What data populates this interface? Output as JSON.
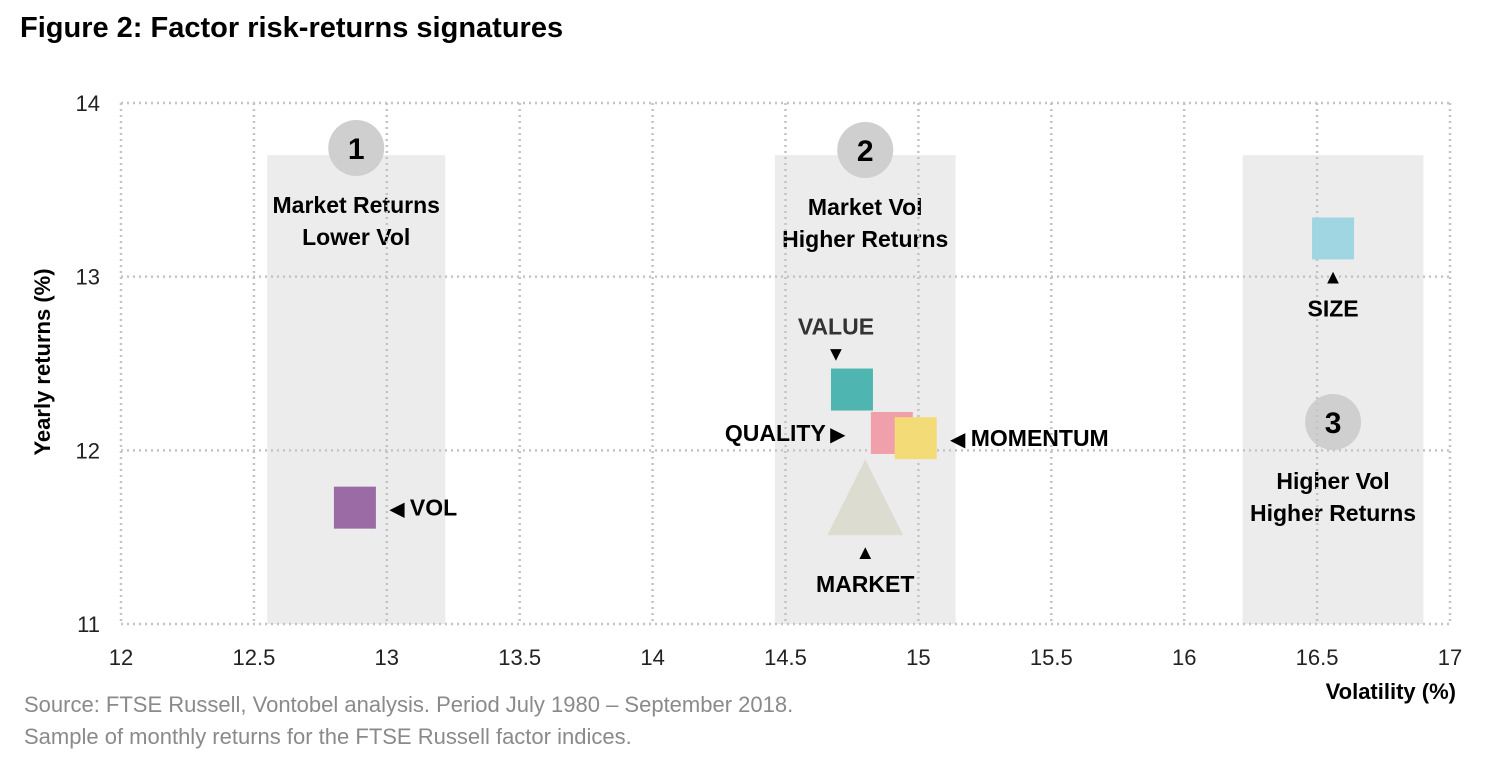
{
  "title": "Figure 2: Factor risk-returns signatures",
  "source_lines": [
    "Source: FTSE Russell, Vontobel analysis. Period July 1980 – September 2018.",
    "Sample of monthly returns for the FTSE Russell factor indices."
  ],
  "chart_data": {
    "type": "scatter",
    "xlabel": "Volatility (%)",
    "ylabel": "Yearly returns (%)",
    "xlim": [
      12,
      17
    ],
    "ylim": [
      11,
      14
    ],
    "x_ticks": [
      12,
      12.5,
      13,
      13.5,
      14,
      14.5,
      15,
      15.5,
      16,
      16.5,
      17
    ],
    "y_ticks": [
      11,
      12,
      13,
      14
    ],
    "x_tick_labels": [
      "12",
      "12.5",
      "13",
      "13.5",
      "14",
      "14.5",
      "15",
      "15.5",
      "16",
      "16.5",
      "17"
    ],
    "y_tick_labels": [
      "11",
      "12",
      "13",
      "14"
    ],
    "grid": true,
    "points": [
      {
        "label": "VOL",
        "x": 12.88,
        "y": 11.67,
        "color": "#9b6ba6",
        "marker": "square",
        "arrow": "◀",
        "label_side": "right"
      },
      {
        "label": "VALUE",
        "x": 14.75,
        "y": 12.35,
        "color": "#4fb5b0",
        "marker": "square",
        "arrow": "▼",
        "label_side": "top"
      },
      {
        "label": "QUALITY",
        "x": 14.9,
        "y": 12.1,
        "color": "#f0a0aa",
        "marker": "square",
        "arrow": "▶",
        "label_side": "left"
      },
      {
        "label": "MOMENTUM",
        "x": 14.99,
        "y": 12.07,
        "color": "#f3dc77",
        "marker": "square",
        "arrow": "◀",
        "label_side": "right"
      },
      {
        "label": "MARKET",
        "x": 14.8,
        "y": 11.73,
        "color": "#dcdcd0",
        "marker": "triangle",
        "arrow": "▲",
        "label_side": "bottom"
      },
      {
        "label": "SIZE",
        "x": 16.56,
        "y": 13.22,
        "color": "#9fd6e2",
        "marker": "square",
        "arrow": "▲",
        "label_side": "bottom"
      }
    ],
    "zones": [
      {
        "number": "1",
        "lines": [
          "Market Returns",
          "Lower Vol"
        ],
        "x_range": [
          12.55,
          13.22
        ]
      },
      {
        "number": "2",
        "lines": [
          "Market Vol",
          "Higher Returns"
        ],
        "x_range": [
          14.46,
          15.14
        ]
      },
      {
        "number": "3",
        "lines": [
          "Higher Vol",
          "Higher Returns"
        ],
        "x_range": [
          16.22,
          16.9
        ]
      }
    ]
  }
}
